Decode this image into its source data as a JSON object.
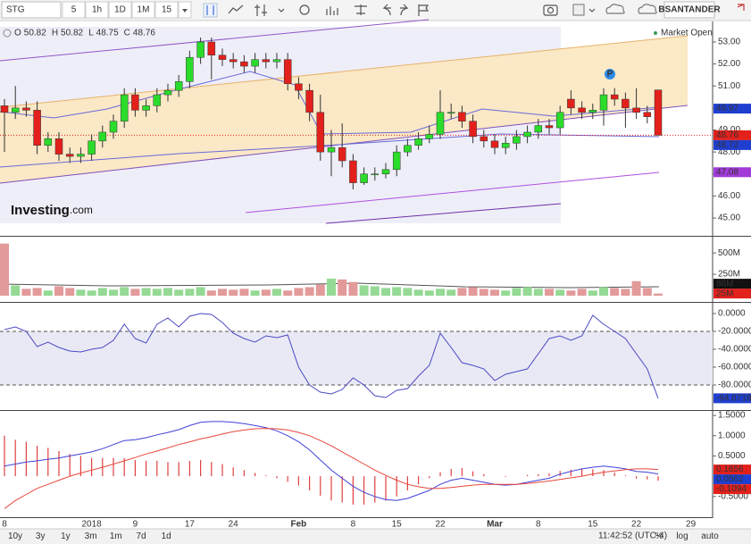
{
  "toolbar": {
    "symbol": "STG",
    "intervals": [
      "5",
      "1h",
      "1D",
      "1M",
      "15"
    ],
    "active_index": 2,
    "account": "BSANTANDER"
  },
  "legend": {
    "items": [
      {
        "key": "O",
        "value": 50.82
      },
      {
        "key": "H",
        "value": 50.82
      },
      {
        "key": "L",
        "value": 48.75
      },
      {
        "key": "C",
        "value": 48.76
      }
    ],
    "status": "Market Open"
  },
  "logo": {
    "brand": "Investing",
    "suffix": ".com"
  },
  "x_axis": {
    "categories": [
      "8",
      null,
      null,
      null,
      null,
      null,
      null,
      null,
      "2018",
      null,
      null,
      null,
      "9",
      null,
      null,
      null,
      null,
      "17",
      null,
      null,
      null,
      "24",
      null,
      null,
      null,
      null,
      null,
      "Feb",
      null,
      null,
      null,
      null,
      "8",
      null,
      null,
      null,
      "15",
      null,
      null,
      null,
      "22",
      null,
      null,
      null,
      null,
      "Mar",
      null,
      null,
      null,
      "8",
      null,
      null,
      null,
      null,
      "15",
      null,
      null,
      null,
      "22",
      null,
      null,
      null,
      null,
      "29"
    ]
  },
  "charts": [
    {
      "type": "candlestick",
      "up_color": "#2bdc2b",
      "down_color": "#e3201b",
      "open": [
        50.1,
        49.8,
        50.0,
        49.9,
        48.3,
        48.6,
        47.9,
        47.8,
        47.9,
        48.5,
        48.9,
        49.4,
        50.6,
        49.9,
        50.1,
        50.6,
        50.8,
        51.2,
        52.3,
        53.0,
        52.4,
        52.2,
        52.1,
        51.9,
        52.2,
        52.1,
        52.2,
        51.1,
        50.8,
        49.8,
        48.0,
        48.2,
        47.6,
        46.6,
        47.0,
        47.0,
        47.2,
        48.0,
        48.3,
        48.6,
        48.8,
        49.8,
        49.8,
        49.4,
        48.7,
        48.5,
        48.2,
        48.4,
        48.7,
        48.9,
        49.2,
        49.1,
        50.4,
        50.0,
        49.8,
        49.9,
        50.6,
        50.4,
        50.0,
        49.8,
        50.82,
        null,
        null,
        null
      ],
      "high": [
        50.4,
        51.0,
        50.3,
        50.3,
        48.9,
        48.9,
        48.2,
        48.2,
        48.8,
        49.2,
        49.7,
        50.9,
        50.9,
        50.4,
        50.9,
        51.1,
        51.5,
        52.6,
        53.2,
        53.2,
        52.7,
        52.5,
        52.4,
        52.5,
        52.5,
        52.5,
        52.5,
        51.4,
        51.1,
        50.6,
        49.0,
        49.3,
        47.9,
        47.3,
        47.3,
        47.5,
        48.3,
        48.6,
        48.9,
        49.2,
        50.8,
        50.2,
        50.1,
        49.7,
        49.0,
        48.8,
        48.7,
        49.0,
        49.2,
        49.5,
        49.5,
        50.1,
        50.8,
        50.3,
        50.2,
        50.9,
        50.9,
        50.7,
        50.9,
        50.1,
        50.82,
        null,
        null,
        null
      ],
      "low": [
        48.0,
        49.5,
        49.6,
        47.9,
        48.0,
        47.6,
        47.5,
        47.5,
        47.6,
        48.2,
        48.6,
        49.1,
        49.6,
        49.6,
        49.8,
        50.3,
        50.5,
        50.9,
        52.0,
        51.3,
        51.9,
        51.8,
        51.6,
        51.6,
        51.8,
        51.8,
        50.8,
        50.4,
        49.4,
        47.6,
        46.9,
        47.3,
        46.3,
        46.5,
        46.7,
        46.8,
        46.9,
        47.8,
        48.1,
        48.4,
        48.6,
        49.5,
        49.1,
        48.4,
        48.2,
        47.9,
        47.9,
        48.1,
        48.4,
        48.6,
        48.8,
        48.8,
        49.7,
        49.5,
        49.5,
        49.2,
        50.1,
        49.1,
        49.5,
        49.3,
        48.75,
        null,
        null,
        null
      ],
      "close": [
        49.8,
        50.0,
        49.9,
        48.3,
        48.6,
        47.9,
        47.8,
        47.9,
        48.5,
        48.9,
        49.4,
        50.6,
        49.9,
        50.1,
        50.6,
        50.8,
        51.2,
        52.3,
        53.0,
        52.4,
        52.2,
        52.1,
        51.9,
        52.2,
        52.1,
        52.2,
        51.1,
        50.8,
        49.8,
        48.0,
        48.2,
        47.6,
        46.6,
        47.0,
        47.0,
        47.2,
        48.0,
        48.3,
        48.6,
        48.8,
        49.8,
        49.8,
        49.4,
        48.7,
        48.5,
        48.2,
        48.4,
        48.7,
        48.9,
        49.2,
        49.1,
        49.8,
        50.0,
        49.8,
        49.9,
        50.6,
        50.4,
        50.0,
        49.8,
        49.6,
        48.76,
        null,
        null,
        null
      ],
      "ylim": [
        44.27,
        53.77
      ],
      "yticks": [
        {
          "value": 45,
          "label": "45.00"
        },
        {
          "value": 46,
          "label": "46.00"
        },
        {
          "value": 47,
          "label": "47.00"
        },
        {
          "value": 48,
          "label": "48.00"
        },
        {
          "value": 49,
          "label": "49.00"
        },
        {
          "value": 50,
          "label": "50.00"
        },
        {
          "value": 51,
          "label": "51.00"
        },
        {
          "value": 52,
          "label": "52.00"
        },
        {
          "value": 53,
          "label": "53.00"
        }
      ],
      "tags": [
        {
          "value": 49.97,
          "color": "#1f3fd0"
        },
        {
          "value": 48.76,
          "color": "#e3201b"
        },
        {
          "value": 48.72,
          "color": "#1f3fd0"
        },
        {
          "value": 47.08,
          "color": "#a23ad8"
        }
      ],
      "annotation": "P"
    },
    {
      "type": "bar",
      "up_color": "#94d994",
      "down_color": "#e39a9a",
      "values": [
        610,
        120,
        80,
        90,
        60,
        110,
        90,
        70,
        60,
        90,
        70,
        100,
        80,
        90,
        80,
        90,
        70,
        80,
        100,
        60,
        80,
        70,
        80,
        60,
        70,
        80,
        60,
        90,
        100,
        130,
        200,
        190,
        160,
        120,
        110,
        90,
        100,
        90,
        70,
        60,
        80,
        70,
        90,
        100,
        80,
        70,
        60,
        90,
        100,
        80,
        80,
        70,
        60,
        80,
        60,
        100,
        90,
        80,
        170,
        90,
        25,
        null,
        null,
        null
      ],
      "ylim": [
        0,
        680
      ],
      "yticks": [
        {
          "value": 250,
          "label": "250M"
        },
        {
          "value": 500,
          "label": "500M"
        }
      ],
      "tags": [
        {
          "value": 25,
          "label": "25M",
          "color": "#e3201b"
        },
        {
          "value": 86,
          "label": "86M",
          "color": "#111"
        }
      ]
    },
    {
      "type": "line",
      "series": [
        {
          "color": "#4a4ac4",
          "values": [
            -18,
            -15,
            -20,
            -37,
            -32,
            -38,
            -42,
            -43,
            -40,
            -38,
            -30,
            -12,
            -28,
            -33,
            -12,
            -5,
            -15,
            -3,
            0,
            -1,
            -10,
            -22,
            -28,
            -32,
            -25,
            -27,
            -24,
            -60,
            -80,
            -88,
            -90,
            -85,
            -72,
            -80,
            -92,
            -94,
            -86,
            -84,
            -70,
            -58,
            -22,
            -38,
            -55,
            -58,
            -62,
            -75,
            -68,
            -65,
            -62,
            -45,
            -28,
            -25,
            -30,
            -25,
            -2,
            -12,
            -20,
            -28,
            -45,
            -62,
            -94.8718,
            null,
            null,
            null
          ]
        }
      ],
      "levels": [
        -20,
        -80
      ],
      "ylim": [
        -106,
        10
      ],
      "yticks": [
        {
          "value": 0,
          "label": "0.0000"
        },
        {
          "value": -20,
          "label": "-20.0000"
        },
        {
          "value": -40,
          "label": "-40.0000"
        },
        {
          "value": -60,
          "label": "-60.0000"
        },
        {
          "value": -80,
          "label": "-80.0000"
        }
      ],
      "tags": [
        {
          "value": -94.8718,
          "color": "#1f3fd0"
        }
      ]
    },
    {
      "type": "line",
      "histogram": {
        "color": "#e04040",
        "values": [
          1.0,
          0.9,
          0.85,
          0.75,
          0.7,
          0.62,
          0.55,
          0.5,
          0.45,
          0.45,
          0.45,
          0.45,
          0.4,
          0.38,
          0.38,
          0.35,
          0.35,
          0.38,
          0.4,
          0.35,
          0.3,
          0.22,
          0.15,
          0.08,
          0.02,
          -0.05,
          -0.14,
          -0.23,
          -0.35,
          -0.48,
          -0.6,
          -0.65,
          -0.7,
          -0.7,
          -0.65,
          -0.6,
          -0.5,
          -0.35,
          -0.2,
          -0.05,
          0.1,
          0.18,
          0.2,
          0.12,
          0.05,
          0.0,
          -0.02,
          0.0,
          0.03,
          0.05,
          0.07,
          0.13,
          0.16,
          0.18,
          0.17,
          0.15,
          0.09,
          0.02,
          -0.06,
          -0.08,
          -0.1094,
          null,
          null,
          null
        ]
      },
      "series": [
        {
          "color": "#4040d8",
          "values": [
            0.25,
            0.3,
            0.35,
            0.38,
            0.42,
            0.45,
            0.5,
            0.55,
            0.6,
            0.68,
            0.78,
            0.88,
            0.9,
            0.95,
            1.02,
            1.08,
            1.15,
            1.25,
            1.33,
            1.35,
            1.35,
            1.33,
            1.3,
            1.25,
            1.2,
            1.12,
            1.0,
            0.85,
            0.65,
            0.4,
            0.15,
            -0.05,
            -0.25,
            -0.4,
            -0.5,
            -0.58,
            -0.6,
            -0.55,
            -0.45,
            -0.35,
            -0.2,
            -0.1,
            -0.05,
            -0.1,
            -0.15,
            -0.2,
            -0.22,
            -0.2,
            -0.15,
            -0.1,
            -0.05,
            0.05,
            0.12,
            0.18,
            0.22,
            0.25,
            0.22,
            0.18,
            0.12,
            0.1,
            0.0562,
            null,
            null,
            null
          ]
        },
        {
          "color": "#e8463c",
          "values": [
            -0.8,
            -0.6,
            -0.45,
            -0.3,
            -0.2,
            -0.1,
            0.0,
            0.08,
            0.15,
            0.22,
            0.3,
            0.38,
            0.46,
            0.55,
            0.62,
            0.7,
            0.78,
            0.85,
            0.92,
            0.98,
            1.04,
            1.1,
            1.14,
            1.17,
            1.18,
            1.17,
            1.14,
            1.08,
            1.0,
            0.88,
            0.75,
            0.6,
            0.45,
            0.3,
            0.15,
            0.02,
            -0.1,
            -0.2,
            -0.26,
            -0.3,
            -0.3,
            -0.28,
            -0.25,
            -0.22,
            -0.2,
            -0.2,
            -0.2,
            -0.2,
            -0.18,
            -0.15,
            -0.12,
            -0.08,
            -0.04,
            0.0,
            0.05,
            0.1,
            0.13,
            0.16,
            0.18,
            0.18,
            0.1656,
            null,
            null,
            null
          ]
        }
      ],
      "ylim": [
        -0.99,
        1.59
      ],
      "yticks": [
        {
          "value": 1.5,
          "label": "1.5000"
        },
        {
          "value": 1,
          "label": "1.0000"
        },
        {
          "value": 0.5,
          "label": "0.5000"
        },
        {
          "value": -0.5,
          "label": "-0.5000"
        }
      ],
      "tags": [
        {
          "value": 0.1656,
          "color": "#e3201b"
        },
        {
          "value": 0.0562,
          "color": "#1f3fd0"
        },
        {
          "value": -0.1094,
          "color": "#e3201b"
        }
      ]
    }
  ],
  "range_buttons": [
    "10y",
    "3y",
    "1y",
    "3m",
    "1m",
    "7d",
    "1d"
  ],
  "status_bar": {
    "time": "11:42:52 (UTC-4)",
    "options": [
      "%",
      "log",
      "auto"
    ]
  }
}
